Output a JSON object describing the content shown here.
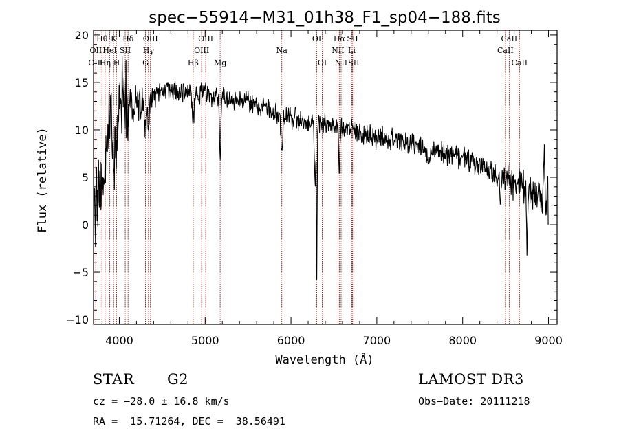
{
  "chart_data": {
    "type": "line",
    "title": "spec−55914−M31_01h38_F1_sp04−188.fits",
    "xlabel": "Wavelength (Å)",
    "ylabel": "Flux (relative)",
    "xlim": [
      3700,
      9100
    ],
    "ylim": [
      -10.5,
      20.5
    ],
    "xticks": [
      4000,
      5000,
      6000,
      7000,
      8000,
      9000
    ],
    "xticklabels": [
      "4000",
      "5000",
      "6000",
      "7000",
      "8000",
      "9000"
    ],
    "xminor_step": 200,
    "yticks": [
      -10,
      -5,
      0,
      5,
      10,
      15,
      20
    ],
    "yticklabels": [
      "−10",
      "−5",
      "0",
      "5",
      "10",
      "15",
      "20"
    ],
    "yminor_step": 1,
    "line_color": "#8b1a1a",
    "series_color": "#000000",
    "spectrum_anchors": [
      {
        "x": 3700,
        "y": 0
      },
      {
        "x": 3740,
        "y": 2.5
      },
      {
        "x": 3800,
        "y": 7
      },
      {
        "x": 3850,
        "y": 9
      },
      {
        "x": 3900,
        "y": 11
      },
      {
        "x": 3950,
        "y": 11
      },
      {
        "x": 4000,
        "y": 13.5
      },
      {
        "x": 4100,
        "y": 13.5
      },
      {
        "x": 4200,
        "y": 12.5
      },
      {
        "x": 4350,
        "y": 13.3
      },
      {
        "x": 4500,
        "y": 14
      },
      {
        "x": 4700,
        "y": 14.2
      },
      {
        "x": 5000,
        "y": 13.8
      },
      {
        "x": 5300,
        "y": 13.3
      },
      {
        "x": 5500,
        "y": 12.8
      },
      {
        "x": 5800,
        "y": 11.8
      },
      {
        "x": 6000,
        "y": 11.2
      },
      {
        "x": 6300,
        "y": 10.8
      },
      {
        "x": 6600,
        "y": 10.3
      },
      {
        "x": 7000,
        "y": 9.2
      },
      {
        "x": 7500,
        "y": 8.3
      },
      {
        "x": 8000,
        "y": 7
      },
      {
        "x": 8400,
        "y": 5.3
      },
      {
        "x": 8700,
        "y": 4
      },
      {
        "x": 8850,
        "y": 3
      },
      {
        "x": 8950,
        "y": 2.5
      },
      {
        "x": 9000,
        "y": 0
      }
    ],
    "absorption_features": [
      {
        "x": 3820,
        "depth": 4,
        "width": 18
      },
      {
        "x": 3934,
        "depth": 5,
        "width": 15
      },
      {
        "x": 3969,
        "depth": 4,
        "width": 15
      },
      {
        "x": 4102,
        "depth": 3,
        "width": 15
      },
      {
        "x": 4305,
        "depth": 4,
        "width": 20
      },
      {
        "x": 4341,
        "depth": 3,
        "width": 12
      },
      {
        "x": 4861,
        "depth": 3,
        "width": 15
      },
      {
        "x": 5175,
        "depth": 6.5,
        "width": 12
      },
      {
        "x": 5893,
        "depth": 4,
        "width": 12
      },
      {
        "x": 6280,
        "depth": 7,
        "width": 10
      },
      {
        "x": 6300,
        "depth": 17,
        "width": 6
      },
      {
        "x": 6563,
        "depth": 5,
        "width": 8
      },
      {
        "x": 7600,
        "depth": 1.5,
        "width": 20
      },
      {
        "x": 8440,
        "depth": 2.5,
        "width": 10
      },
      {
        "x": 8750,
        "depth": 7.5,
        "width": 8
      }
    ],
    "emission_features": [
      {
        "x": 8950,
        "height": 9.5,
        "width": 8
      },
      {
        "x": 8990,
        "height": 6,
        "width": 8
      }
    ],
    "spectral_lines": [
      {
        "name": "Hθ",
        "wavelength": 3798,
        "row": 1
      },
      {
        "name": "OII",
        "wavelength": 3727,
        "row": 2
      },
      {
        "name": "OIII",
        "wavelength": 3727,
        "row": 3
      },
      {
        "name": "K",
        "wavelength": 3934,
        "row": 1
      },
      {
        "name": "HeI",
        "wavelength": 3889,
        "row": 2
      },
      {
        "name": "Hη",
        "wavelength": 3835,
        "row": 3
      },
      {
        "name": "SII",
        "wavelength": 4069,
        "row": 2
      },
      {
        "name": "H",
        "wavelength": 3969,
        "row": 3
      },
      {
        "name": "Hδ",
        "wavelength": 4102,
        "row": 1
      },
      {
        "name": "OIII",
        "wavelength": 4363,
        "row": 1
      },
      {
        "name": "Hγ",
        "wavelength": 4340,
        "row": 2
      },
      {
        "name": "G",
        "wavelength": 4305,
        "row": 3
      },
      {
        "name": "Hβ",
        "wavelength": 4861,
        "row": 3
      },
      {
        "name": "OIII",
        "wavelength": 5007,
        "row": 1
      },
      {
        "name": "OIII",
        "wavelength": 4959,
        "row": 2
      },
      {
        "name": "Mg",
        "wavelength": 5175,
        "row": 3
      },
      {
        "name": "Na",
        "wavelength": 5893,
        "row": 2
      },
      {
        "name": "OI",
        "wavelength": 6300,
        "row": 1
      },
      {
        "name": "OI",
        "wavelength": 6364,
        "row": 3
      },
      {
        "name": "Hα",
        "wavelength": 6563,
        "row": 1
      },
      {
        "name": "NII",
        "wavelength": 6548,
        "row": 2
      },
      {
        "name": "NII",
        "wavelength": 6584,
        "row": 3
      },
      {
        "name": "SII",
        "wavelength": 6717,
        "row": 1
      },
      {
        "name": "Li",
        "wavelength": 6708,
        "row": 2
      },
      {
        "name": "SII",
        "wavelength": 6731,
        "row": 3
      },
      {
        "name": "CaII",
        "wavelength": 8542,
        "row": 1
      },
      {
        "name": "CaII",
        "wavelength": 8498,
        "row": 2
      },
      {
        "name": "CaII",
        "wavelength": 8662,
        "row": 3
      }
    ]
  },
  "info": {
    "class": "STAR",
    "subclass": "G2",
    "survey": "LAMOST DR3",
    "cz": "cz = −28.0 ± 16.8 km/s",
    "obs_date": "Obs−Date: 20111218",
    "coords": "RA =  15.71264, DEC =  38.56491"
  }
}
